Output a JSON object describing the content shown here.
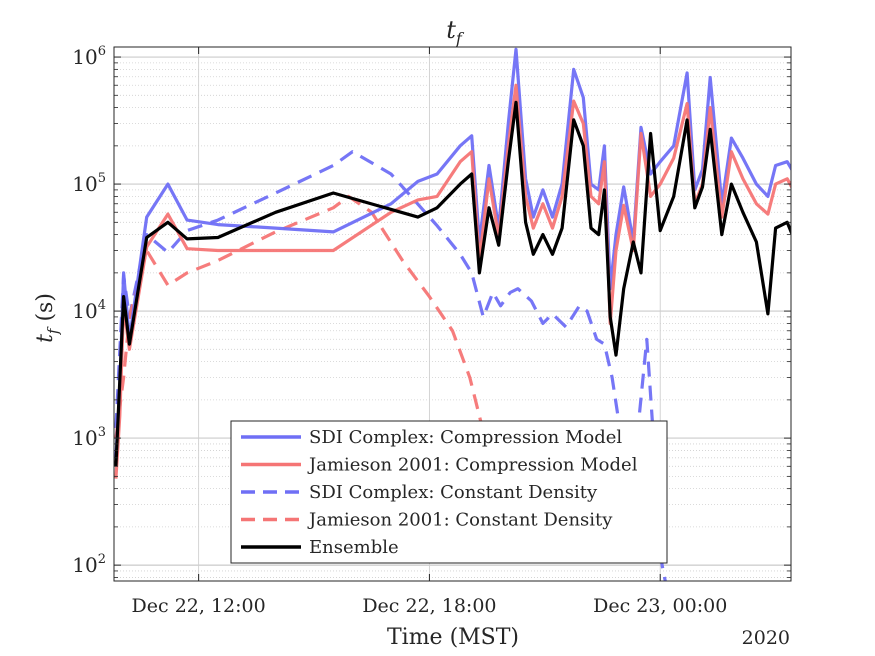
{
  "chart_data": {
    "type": "line",
    "title_main": "t",
    "title_sub": "f",
    "ylabel_main": "t",
    "ylabel_sub": "f",
    "ylabel_unit": " (s)",
    "xlabel": "Time (MST)",
    "year_label": "2020",
    "yscale": "log",
    "ylim": [
      75,
      1200000
    ],
    "xlim_hours": [
      9.8,
      27.4
    ],
    "grid": true,
    "legend_position": "bottom-center",
    "x_ticks": [
      {
        "value": 12,
        "label": "Dec 22, 12:00"
      },
      {
        "value": 18,
        "label": "Dec 22, 18:00"
      },
      {
        "value": 24,
        "label": "Dec 23, 00:00"
      }
    ],
    "y_ticks": [
      {
        "value": 100,
        "base": "10",
        "exp": "2"
      },
      {
        "value": 1000,
        "base": "10",
        "exp": "3"
      },
      {
        "value": 10000,
        "base": "10",
        "exp": "4"
      },
      {
        "value": 100000,
        "base": "10",
        "exp": "5"
      },
      {
        "value": 1000000,
        "base": "10",
        "exp": "6"
      }
    ],
    "series": [
      {
        "name": "SDI Complex: Compression Model",
        "color": "#6f6ff5",
        "dash": "solid",
        "points": [
          [
            9.85,
            700
          ],
          [
            9.95,
            2500
          ],
          [
            10.05,
            20000
          ],
          [
            10.2,
            6000
          ],
          [
            10.65,
            55000
          ],
          [
            11.2,
            100000
          ],
          [
            11.7,
            52000
          ],
          [
            12.5,
            48000
          ],
          [
            14.0,
            45000
          ],
          [
            15.5,
            42000
          ],
          [
            17.0,
            70000
          ],
          [
            17.7,
            105000
          ],
          [
            18.2,
            120000
          ],
          [
            18.8,
            200000
          ],
          [
            19.1,
            240000
          ],
          [
            19.3,
            35000
          ],
          [
            19.55,
            140000
          ],
          [
            19.8,
            45000
          ],
          [
            20.05,
            300000
          ],
          [
            20.25,
            1150000
          ],
          [
            20.5,
            110000
          ],
          [
            20.7,
            55000
          ],
          [
            20.95,
            90000
          ],
          [
            21.2,
            55000
          ],
          [
            21.45,
            100000
          ],
          [
            21.75,
            800000
          ],
          [
            22.0,
            480000
          ],
          [
            22.2,
            100000
          ],
          [
            22.4,
            90000
          ],
          [
            22.55,
            200000
          ],
          [
            22.7,
            15000
          ],
          [
            22.85,
            40000
          ],
          [
            23.05,
            95000
          ],
          [
            23.3,
            35000
          ],
          [
            23.5,
            280000
          ],
          [
            23.75,
            120000
          ],
          [
            24.0,
            150000
          ],
          [
            24.35,
            200000
          ],
          [
            24.7,
            750000
          ],
          [
            24.9,
            90000
          ],
          [
            25.1,
            130000
          ],
          [
            25.3,
            690000
          ],
          [
            25.6,
            70000
          ],
          [
            25.85,
            230000
          ],
          [
            26.15,
            160000
          ],
          [
            26.5,
            100000
          ],
          [
            26.8,
            80000
          ],
          [
            27.0,
            140000
          ],
          [
            27.3,
            150000
          ],
          [
            27.6,
            105000
          ],
          [
            28.0,
            65000
          ]
        ]
      },
      {
        "name": "Jamieson 2001: Compression Model",
        "color": "#f57575",
        "dash": "solid",
        "points": [
          [
            9.85,
            480
          ],
          [
            9.95,
            1500
          ],
          [
            10.05,
            11000
          ],
          [
            10.2,
            5000
          ],
          [
            10.65,
            32000
          ],
          [
            11.2,
            58000
          ],
          [
            11.7,
            31000
          ],
          [
            12.5,
            30000
          ],
          [
            14.0,
            30000
          ],
          [
            15.5,
            30000
          ],
          [
            17.0,
            60000
          ],
          [
            17.7,
            75000
          ],
          [
            18.2,
            80000
          ],
          [
            18.8,
            150000
          ],
          [
            19.1,
            180000
          ],
          [
            19.3,
            25000
          ],
          [
            19.55,
            110000
          ],
          [
            19.8,
            38000
          ],
          [
            20.05,
            200000
          ],
          [
            20.25,
            600000
          ],
          [
            20.5,
            80000
          ],
          [
            20.7,
            45000
          ],
          [
            20.95,
            70000
          ],
          [
            21.2,
            45000
          ],
          [
            21.45,
            80000
          ],
          [
            21.75,
            450000
          ],
          [
            22.0,
            300000
          ],
          [
            22.2,
            80000
          ],
          [
            22.4,
            70000
          ],
          [
            22.55,
            150000
          ],
          [
            22.7,
            8000
          ],
          [
            22.85,
            30000
          ],
          [
            23.05,
            68000
          ],
          [
            23.3,
            30000
          ],
          [
            23.5,
            250000
          ],
          [
            23.75,
            80000
          ],
          [
            24.0,
            100000
          ],
          [
            24.35,
            160000
          ],
          [
            24.7,
            430000
          ],
          [
            24.9,
            70000
          ],
          [
            25.1,
            100000
          ],
          [
            25.3,
            400000
          ],
          [
            25.6,
            55000
          ],
          [
            25.85,
            180000
          ],
          [
            26.15,
            110000
          ],
          [
            26.5,
            70000
          ],
          [
            26.8,
            58000
          ],
          [
            27.0,
            100000
          ],
          [
            27.3,
            110000
          ],
          [
            27.6,
            75000
          ],
          [
            28.0,
            50000
          ]
        ]
      },
      {
        "name": "SDI Complex: Constant Density",
        "color": "#6f6ff5",
        "dash": "dashed",
        "points": [
          [
            9.85,
            1200
          ],
          [
            10.05,
            19000
          ],
          [
            10.2,
            9000
          ],
          [
            10.65,
            40000
          ],
          [
            11.2,
            29000
          ],
          [
            11.7,
            43000
          ],
          [
            12.5,
            52000
          ],
          [
            14.0,
            85000
          ],
          [
            15.5,
            140000
          ],
          [
            16.0,
            180000
          ],
          [
            17.0,
            120000
          ],
          [
            18.2,
            47000
          ],
          [
            18.8,
            28000
          ],
          [
            19.1,
            20000
          ],
          [
            19.4,
            9000
          ],
          [
            19.65,
            14000
          ],
          [
            19.85,
            11000
          ],
          [
            20.1,
            14000
          ],
          [
            20.3,
            15000
          ],
          [
            20.65,
            12000
          ],
          [
            20.95,
            8000
          ],
          [
            21.2,
            9500
          ],
          [
            21.55,
            7500
          ],
          [
            21.9,
            11000
          ],
          [
            22.1,
            10000
          ],
          [
            22.35,
            6000
          ],
          [
            22.55,
            5500
          ],
          [
            22.75,
            3000
          ],
          [
            22.95,
            1200
          ],
          [
            23.3,
            500
          ],
          [
            23.65,
            6000
          ],
          [
            24.05,
            100
          ],
          [
            24.15,
            70
          ]
        ]
      },
      {
        "name": "Jamieson 2001: Constant Density",
        "color": "#f57575",
        "dash": "dashed",
        "points": [
          [
            9.85,
            1000
          ],
          [
            10.05,
            3000
          ],
          [
            10.2,
            9000
          ],
          [
            10.65,
            30000
          ],
          [
            11.2,
            16000
          ],
          [
            11.7,
            20000
          ],
          [
            12.5,
            25000
          ],
          [
            14.0,
            42000
          ],
          [
            15.5,
            65000
          ],
          [
            15.9,
            80000
          ],
          [
            16.5,
            60000
          ],
          [
            17.3,
            25000
          ],
          [
            18.0,
            13000
          ],
          [
            18.6,
            7000
          ],
          [
            19.05,
            3000
          ],
          [
            19.35,
            1300
          ],
          [
            19.5,
            700
          ]
        ]
      },
      {
        "name": "Ensemble",
        "color": "#000000",
        "dash": "solid",
        "points": [
          [
            9.85,
            600
          ],
          [
            10.05,
            13000
          ],
          [
            10.2,
            5500
          ],
          [
            10.65,
            38000
          ],
          [
            11.2,
            50000
          ],
          [
            11.7,
            37000
          ],
          [
            12.5,
            38000
          ],
          [
            14.0,
            60000
          ],
          [
            15.5,
            85000
          ],
          [
            17.7,
            55000
          ],
          [
            18.2,
            65000
          ],
          [
            18.8,
            100000
          ],
          [
            19.1,
            120000
          ],
          [
            19.3,
            20000
          ],
          [
            19.55,
            65000
          ],
          [
            19.8,
            33000
          ],
          [
            20.05,
            150000
          ],
          [
            20.25,
            440000
          ],
          [
            20.5,
            50000
          ],
          [
            20.7,
            28000
          ],
          [
            20.95,
            40000
          ],
          [
            21.2,
            28000
          ],
          [
            21.45,
            45000
          ],
          [
            21.75,
            320000
          ],
          [
            22.0,
            200000
          ],
          [
            22.2,
            45000
          ],
          [
            22.4,
            40000
          ],
          [
            22.55,
            90000
          ],
          [
            22.7,
            9000
          ],
          [
            22.85,
            4500
          ],
          [
            23.05,
            15000
          ],
          [
            23.3,
            35000
          ],
          [
            23.5,
            20000
          ],
          [
            23.75,
            250000
          ],
          [
            24.0,
            43000
          ],
          [
            24.35,
            80000
          ],
          [
            24.7,
            320000
          ],
          [
            24.9,
            65000
          ],
          [
            25.1,
            95000
          ],
          [
            25.3,
            270000
          ],
          [
            25.6,
            40000
          ],
          [
            25.85,
            100000
          ],
          [
            26.15,
            60000
          ],
          [
            26.5,
            35000
          ],
          [
            26.8,
            9500
          ],
          [
            27.0,
            45000
          ],
          [
            27.3,
            50000
          ],
          [
            27.6,
            30000
          ]
        ]
      }
    ]
  }
}
